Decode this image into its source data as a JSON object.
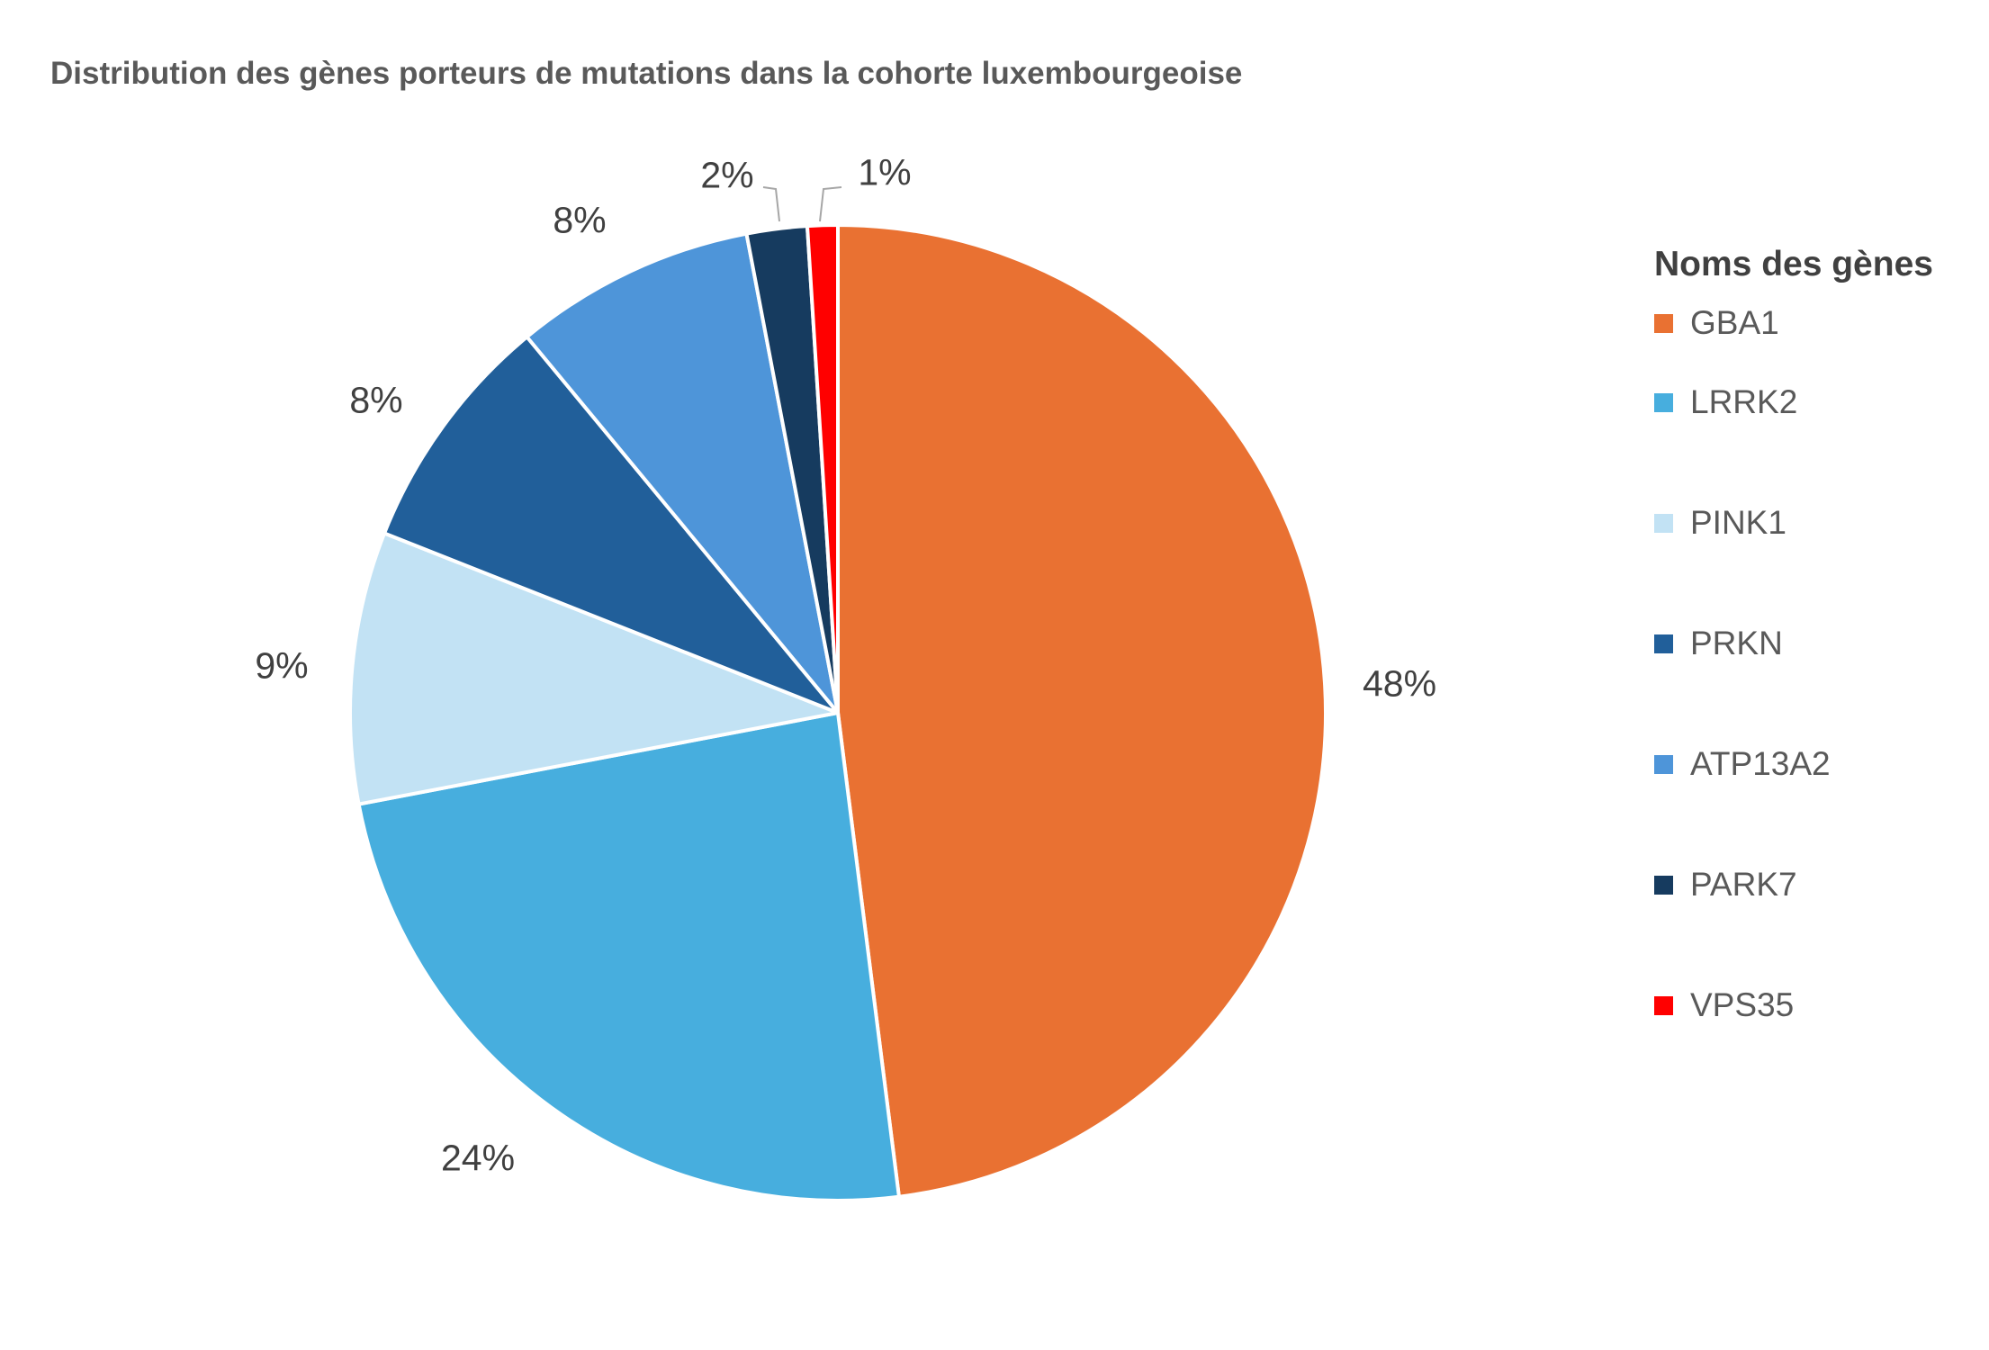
{
  "chart_data": {
    "type": "pie",
    "title": "Distribution des gènes porteurs de mutations dans la cohorte luxembourgeoise",
    "legend_title": "Noms des gènes",
    "legend_position": "right",
    "categories": [
      "GBA1",
      "LRRK2",
      "PINK1",
      "PRKN",
      "ATP13A2",
      "PARK7",
      "VPS35"
    ],
    "values": [
      48,
      24,
      9,
      8,
      8,
      2,
      1
    ],
    "labels": [
      "48%",
      "24%",
      "9%",
      "8%",
      "8%",
      "2%",
      "1%"
    ],
    "colors": [
      "#E97132",
      "#47AEDE",
      "#C2E2F4",
      "#215F9A",
      "#4E95D9",
      "#163B5F",
      "#FF0000"
    ]
  }
}
